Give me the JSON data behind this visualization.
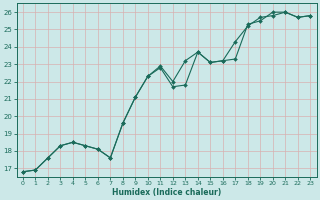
{
  "xlabel": "Humidex (Indice chaleur)",
  "ylabel": "",
  "bg_color": "#cce8e8",
  "grid_color": "#c0dada",
  "line_color": "#1a6b5a",
  "xlim": [
    -0.5,
    23.5
  ],
  "ylim": [
    16.5,
    26.5
  ],
  "xticks": [
    0,
    1,
    2,
    3,
    4,
    5,
    6,
    7,
    8,
    9,
    10,
    11,
    12,
    13,
    14,
    15,
    16,
    17,
    18,
    19,
    20,
    21,
    22,
    23
  ],
  "yticks": [
    17,
    18,
    19,
    20,
    21,
    22,
    23,
    24,
    25,
    26
  ],
  "line1_x": [
    0,
    1,
    2,
    3,
    4,
    5,
    6,
    7,
    8,
    9,
    10,
    11,
    12,
    13,
    14,
    15,
    16,
    17,
    18,
    19,
    20,
    21,
    22,
    23
  ],
  "line1_y": [
    16.8,
    16.9,
    17.6,
    18.3,
    18.5,
    18.3,
    18.1,
    17.6,
    19.6,
    21.1,
    22.3,
    22.9,
    22.0,
    23.2,
    23.7,
    23.1,
    23.2,
    23.3,
    25.3,
    25.5,
    26.0,
    26.0,
    25.7,
    25.8
  ],
  "line2_x": [
    0,
    1,
    2,
    3,
    4,
    5,
    6,
    7,
    8,
    9,
    10,
    11,
    12,
    13,
    14,
    15,
    16,
    17,
    18,
    19,
    20,
    21,
    22,
    23
  ],
  "line2_y": [
    16.8,
    16.9,
    17.6,
    18.3,
    18.5,
    18.3,
    18.1,
    17.6,
    19.6,
    21.1,
    22.3,
    22.8,
    21.7,
    21.8,
    23.7,
    23.1,
    23.2,
    24.3,
    25.2,
    25.7,
    25.8,
    26.0,
    25.7,
    25.8
  ]
}
